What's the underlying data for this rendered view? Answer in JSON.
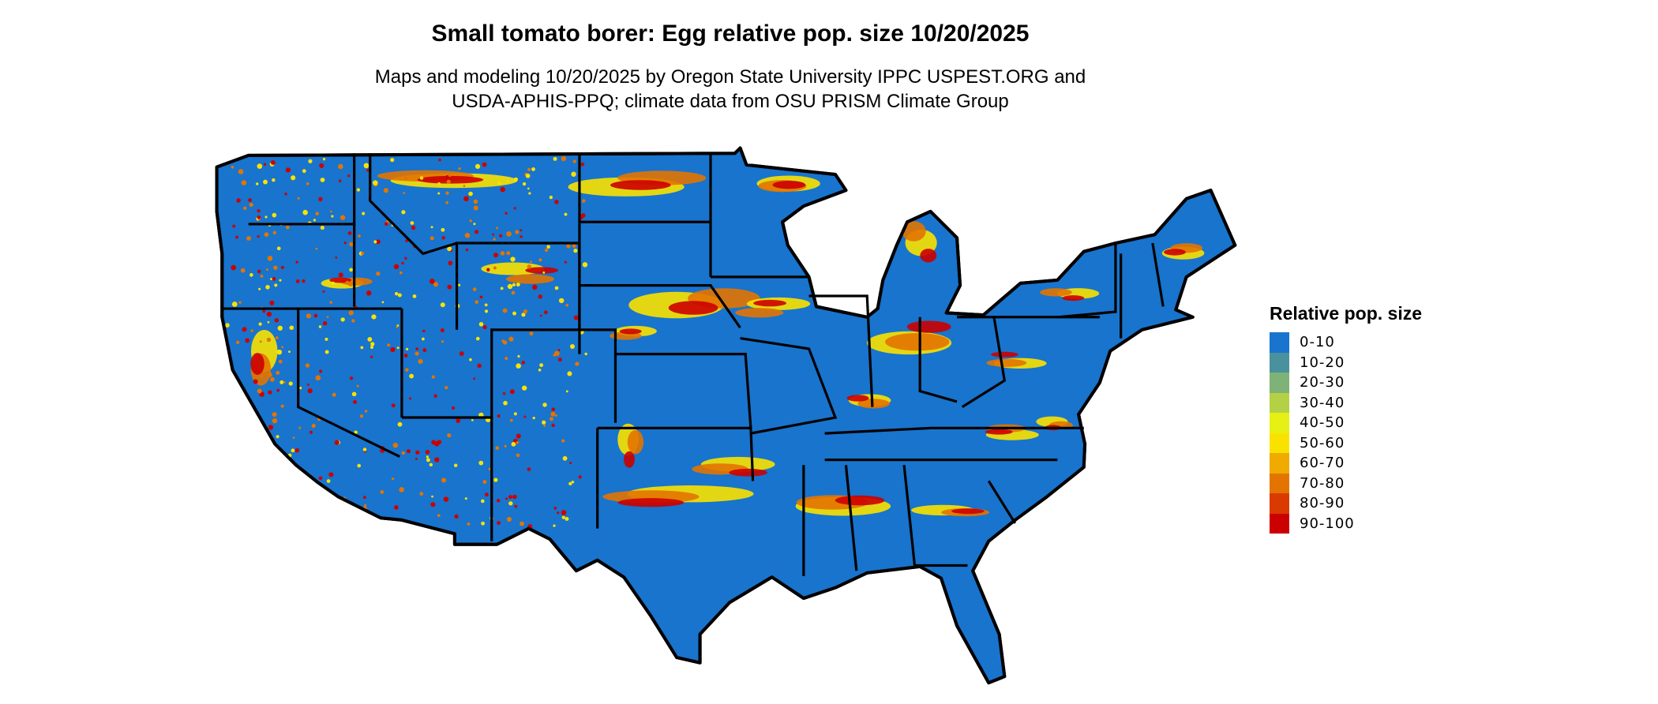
{
  "title": "Small tomato borer: Egg relative pop. size 10/20/2025",
  "subtitle": [
    "Maps and modeling 10/20/2025 by Oregon State University IPPC USPEST.ORG and",
    "USDA-APHIS-PPQ; climate data from OSU PRISM Climate Group"
  ],
  "legend": {
    "title": "Relative pop. size",
    "items": [
      {
        "label": "0-10",
        "color": "#1874CD"
      },
      {
        "label": "10-20",
        "color": "#4A919E"
      },
      {
        "label": "20-30",
        "color": "#7FB276"
      },
      {
        "label": "30-40",
        "color": "#B4D145"
      },
      {
        "label": "40-50",
        "color": "#E6F014"
      },
      {
        "label": "50-60",
        "color": "#F9E200"
      },
      {
        "label": "60-70",
        "color": "#F0AA00"
      },
      {
        "label": "70-80",
        "color": "#E37400"
      },
      {
        "label": "80-90",
        "color": "#DA3A00"
      },
      {
        "label": "90-100",
        "color": "#CC0000"
      }
    ]
  },
  "map": {
    "region": "Contiguous United States",
    "base_color": "#1874CD",
    "border_color": "#000000"
  }
}
